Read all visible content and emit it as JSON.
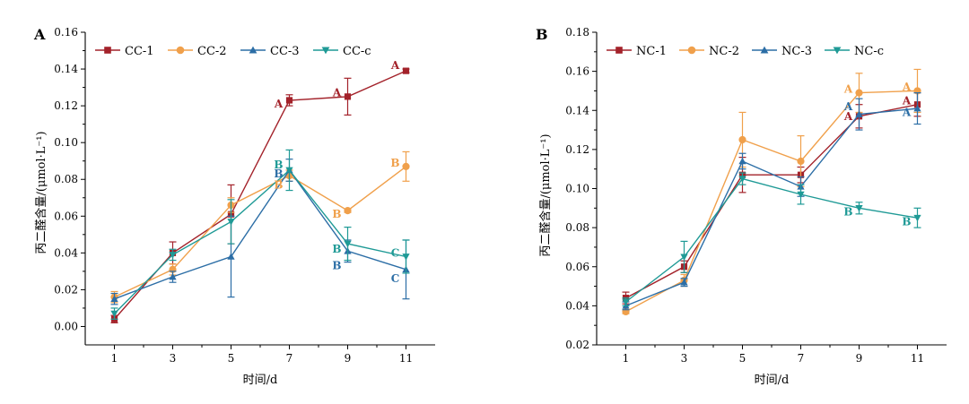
{
  "chart_data": [
    {
      "type": "line",
      "panel_label": "A",
      "xlabel": "时间/d",
      "ylabel": "丙二醛含量/(μmol·L⁻¹)",
      "x": [
        1,
        3,
        5,
        7,
        9,
        11
      ],
      "x_ticks": [
        "1",
        "3",
        "5",
        "7",
        "9",
        "11"
      ],
      "xlim": [
        0,
        12
      ],
      "ylim": [
        -0.01,
        0.16
      ],
      "y_ticks": [
        "0.00",
        "0.02",
        "0.04",
        "0.06",
        "0.08",
        "0.10",
        "0.12",
        "0.14",
        "0.16"
      ],
      "legend_position": "top",
      "series": [
        {
          "name": "CC-1",
          "color": "#a3222a",
          "marker": "square",
          "values": [
            0.004,
            0.04,
            0.061,
            0.123,
            0.125,
            0.139
          ],
          "errors": [
            0.002,
            0.006,
            0.016,
            0.003,
            0.01,
            0.001
          ]
        },
        {
          "name": "CC-2",
          "color": "#f0a04b",
          "marker": "circle",
          "values": [
            0.016,
            0.031,
            0.066,
            0.082,
            0.063,
            0.087
          ],
          "errors": [
            0.003,
            0.003,
            0.004,
            0.003,
            0.001,
            0.008
          ]
        },
        {
          "name": "CC-3",
          "color": "#2c6ea6",
          "marker": "triangle-up",
          "values": [
            0.015,
            0.027,
            0.038,
            0.085,
            0.041,
            0.031
          ],
          "errors": [
            0.003,
            0.003,
            0.022,
            0.006,
            0.006,
            0.016
          ]
        },
        {
          "name": "CC-c",
          "color": "#1f9a96",
          "marker": "triangle-down",
          "values": [
            0.007,
            0.039,
            0.057,
            0.085,
            0.045,
            0.038
          ],
          "errors": [
            0.003,
            0.003,
            0.012,
            0.011,
            0.009,
            0.009
          ]
        }
      ],
      "annotations": [
        {
          "text": "A",
          "x": 7,
          "y": 0.121,
          "color": "#a3222a",
          "side": "left"
        },
        {
          "text": "A",
          "x": 9,
          "y": 0.127,
          "color": "#a3222a",
          "side": "left"
        },
        {
          "text": "A",
          "x": 11,
          "y": 0.142,
          "color": "#a3222a",
          "side": "left"
        },
        {
          "text": "B",
          "x": 7,
          "y": 0.088,
          "color": "#1f9a96",
          "side": "left"
        },
        {
          "text": "B",
          "x": 7,
          "y": 0.083,
          "color": "#2c6ea6",
          "side": "left"
        },
        {
          "text": "B",
          "x": 7,
          "y": 0.077,
          "color": "#f0a04b",
          "side": "left"
        },
        {
          "text": "B",
          "x": 9,
          "y": 0.061,
          "color": "#f0a04b",
          "side": "left"
        },
        {
          "text": "B",
          "x": 9,
          "y": 0.042,
          "color": "#1f9a96",
          "side": "left"
        },
        {
          "text": "B",
          "x": 9,
          "y": 0.033,
          "color": "#2c6ea6",
          "side": "left"
        },
        {
          "text": "B",
          "x": 11,
          "y": 0.089,
          "color": "#f0a04b",
          "side": "left"
        },
        {
          "text": "C",
          "x": 11,
          "y": 0.04,
          "color": "#1f9a96",
          "side": "left"
        },
        {
          "text": "C",
          "x": 11,
          "y": 0.026,
          "color": "#2c6ea6",
          "side": "left"
        }
      ]
    },
    {
      "type": "line",
      "panel_label": "B",
      "xlabel": "时间/d",
      "ylabel": "丙二醛含量/(μmol·L⁻¹)",
      "x": [
        1,
        3,
        5,
        7,
        9,
        11
      ],
      "x_ticks": [
        "1",
        "3",
        "5",
        "7",
        "9",
        "11"
      ],
      "xlim": [
        0,
        12
      ],
      "ylim": [
        0.02,
        0.18
      ],
      "y_ticks": [
        "0.02",
        "0.04",
        "0.06",
        "0.08",
        "0.10",
        "0.12",
        "0.14",
        "0.16",
        "0.18"
      ],
      "legend_position": "top",
      "series": [
        {
          "name": "NC-1",
          "color": "#a3222a",
          "marker": "square",
          "values": [
            0.044,
            0.06,
            0.107,
            0.107,
            0.137,
            0.143
          ],
          "errors": [
            0.003,
            0.003,
            0.009,
            0.004,
            0.006,
            0.006
          ]
        },
        {
          "name": "NC-2",
          "color": "#f0a04b",
          "marker": "circle",
          "values": [
            0.037,
            0.053,
            0.125,
            0.114,
            0.149,
            0.15
          ],
          "errors": [
            0.001,
            0.003,
            0.014,
            0.013,
            0.01,
            0.011
          ]
        },
        {
          "name": "NC-3",
          "color": "#2c6ea6",
          "marker": "triangle-up",
          "values": [
            0.04,
            0.052,
            0.114,
            0.101,
            0.138,
            0.141
          ],
          "errors": [
            0.002,
            0.002,
            0.004,
            0.005,
            0.008,
            0.008
          ]
        },
        {
          "name": "NC-c",
          "color": "#1f9a96",
          "marker": "triangle-down",
          "values": [
            0.042,
            0.065,
            0.105,
            0.097,
            0.09,
            0.085
          ],
          "errors": [
            0.002,
            0.008,
            0.003,
            0.005,
            0.003,
            0.005
          ]
        }
      ],
      "annotations": [
        {
          "text": "A",
          "x": 9,
          "y": 0.151,
          "color": "#f0a04b",
          "side": "left"
        },
        {
          "text": "A",
          "x": 9,
          "y": 0.142,
          "color": "#2c6ea6",
          "side": "left"
        },
        {
          "text": "A",
          "x": 9,
          "y": 0.137,
          "color": "#a3222a",
          "side": "left"
        },
        {
          "text": "B",
          "x": 9,
          "y": 0.088,
          "color": "#1f9a96",
          "side": "left"
        },
        {
          "text": "A",
          "x": 11,
          "y": 0.152,
          "color": "#f0a04b",
          "side": "left"
        },
        {
          "text": "A",
          "x": 11,
          "y": 0.145,
          "color": "#a3222a",
          "side": "left"
        },
        {
          "text": "A",
          "x": 11,
          "y": 0.139,
          "color": "#2c6ea6",
          "side": "left"
        },
        {
          "text": "B",
          "x": 11,
          "y": 0.083,
          "color": "#1f9a96",
          "side": "left"
        }
      ]
    }
  ]
}
